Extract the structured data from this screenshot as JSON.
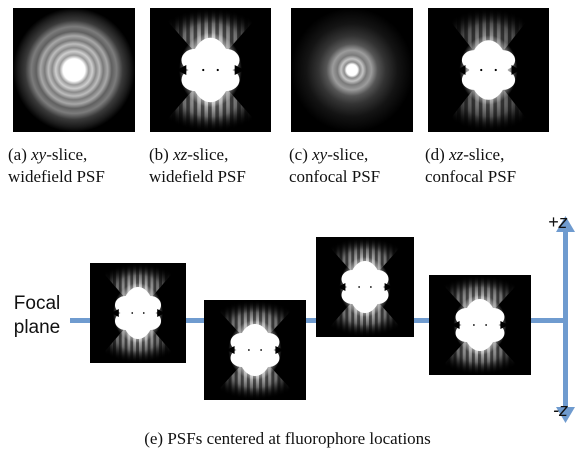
{
  "top_panels": [
    {
      "id": "a",
      "prefix": "(a) ",
      "axis": "xy",
      "suffix": "-slice,",
      "line2": "widefield PSF",
      "view": "xy-widefield"
    },
    {
      "id": "b",
      "prefix": "(b) ",
      "axis": "xz",
      "suffix": "-slice,",
      "line2": "widefield PSF",
      "view": "xz-widefield"
    },
    {
      "id": "c",
      "prefix": "(c) ",
      "axis": "xy",
      "suffix": "-slice,",
      "line2": "confocal PSF",
      "view": "xy-confocal"
    },
    {
      "id": "d",
      "prefix": "(d) ",
      "axis": "xz",
      "suffix": "-slice,",
      "line2": "confocal PSF",
      "view": "xz-confocal"
    }
  ],
  "focal_label_line1": "Focal",
  "focal_label_line2": "plane",
  "axis_top_label": "+z",
  "axis_bottom_label": "-z",
  "bottom_caption": "(e) PSFs centered at fluorophore locations",
  "colors": {
    "line": "#6f9bcf",
    "tile_bg": "#000000"
  }
}
